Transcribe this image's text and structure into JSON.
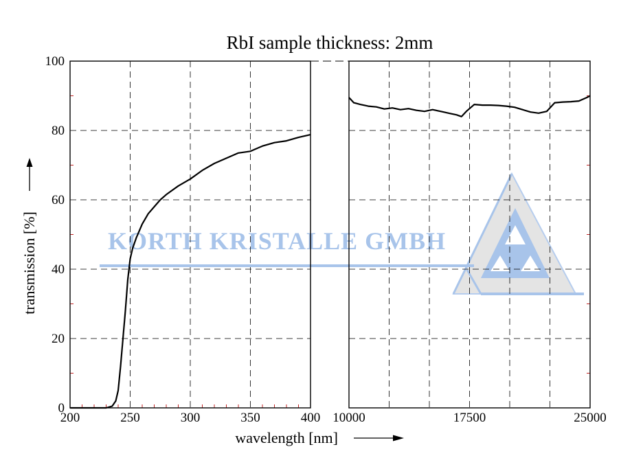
{
  "chart_data": {
    "type": "line",
    "title": "RbI sample thickness: 2mm",
    "xlabel": "wavelength [nm]",
    "ylabel": "transmission [%]",
    "ylim": [
      0,
      100
    ],
    "yticks": [
      "0",
      "20",
      "40",
      "60",
      "80",
      "100"
    ],
    "grid": true,
    "panels": [
      {
        "name": "uv-vis",
        "xlim": [
          200,
          400
        ],
        "xticks": [
          "200",
          "250",
          "300",
          "350",
          "400"
        ],
        "x": [
          200,
          210,
          220,
          230,
          235,
          238,
          240,
          242,
          244,
          246,
          248,
          250,
          252,
          255,
          260,
          265,
          270,
          275,
          280,
          290,
          300,
          310,
          320,
          330,
          340,
          350,
          360,
          370,
          380,
          390,
          400
        ],
        "y": [
          0,
          0,
          0,
          0,
          0.5,
          2,
          5,
          12,
          20,
          28,
          37,
          43,
          46,
          49,
          53,
          56,
          58,
          60,
          61.5,
          64,
          66,
          68.5,
          70.5,
          72,
          73.5,
          74,
          75.5,
          76.5,
          77,
          78,
          78.8
        ]
      },
      {
        "name": "ir",
        "xlim": [
          10000,
          25000
        ],
        "xticks": [
          "10000",
          "",
          "",
          "17500",
          "",
          "",
          "25000"
        ],
        "x": [
          10000,
          10300,
          10700,
          11200,
          11700,
          12200,
          12700,
          13200,
          13700,
          14200,
          14700,
          15200,
          15700,
          16200,
          16700,
          17000,
          17300,
          17800,
          18300,
          18800,
          19300,
          19800,
          20300,
          20800,
          21300,
          21800,
          22300,
          22800,
          23300,
          23800,
          24300,
          24800,
          25000
        ],
        "y": [
          89.5,
          88,
          87.5,
          87,
          86.8,
          86.2,
          86.5,
          86,
          86.3,
          85.8,
          85.5,
          86,
          85.5,
          85,
          84.5,
          84,
          85.5,
          87.5,
          87.3,
          87.3,
          87.2,
          87,
          86.7,
          86,
          85.3,
          85,
          85.5,
          88,
          88.2,
          88.3,
          88.5,
          89.5,
          90
        ]
      }
    ]
  },
  "watermark": {
    "text": "KORTH KRISTALLE GMBH",
    "color": "#a8c4ea",
    "logo": "korth-kristalle-triangle-logo"
  },
  "arrows": {
    "x_arrow": "right-arrow-icon",
    "y_arrow": "up-arrow-icon"
  }
}
